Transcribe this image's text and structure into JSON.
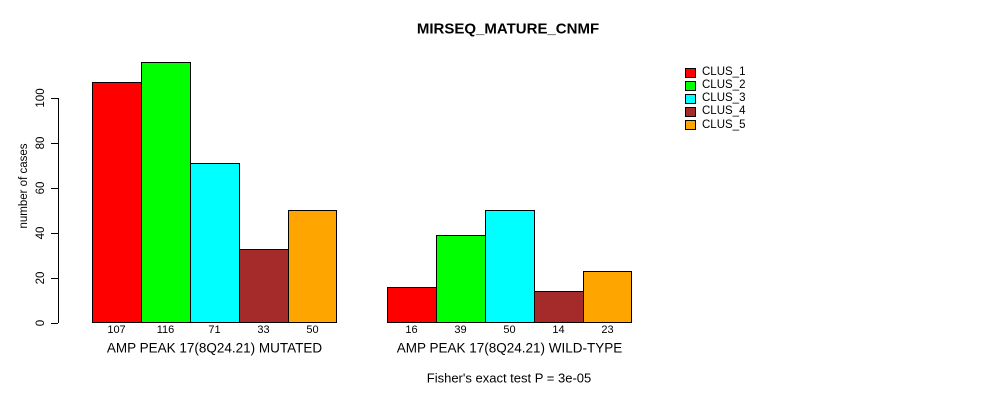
{
  "chart_data": {
    "type": "bar",
    "title": "MIRSEQ_MATURE_CNMF",
    "ylabel": "number of cases",
    "xlabel": "",
    "footnote": "Fisher's exact test P = 3e-05",
    "yticks": [
      0,
      20,
      40,
      60,
      80,
      100
    ],
    "ylim": [
      0,
      122
    ],
    "grid": false,
    "legend_position": "right",
    "series": [
      {
        "name": "CLUS_1",
        "color": "#ff0000"
      },
      {
        "name": "CLUS_2",
        "color": "#00ff00"
      },
      {
        "name": "CLUS_3",
        "color": "#00ffff"
      },
      {
        "name": "CLUS_4",
        "color": "#a52a2a"
      },
      {
        "name": "CLUS_5",
        "color": "#ffa500"
      }
    ],
    "groups": [
      {
        "label": "AMP PEAK 17(8Q24.21) MUTATED",
        "values": [
          107,
          116,
          71,
          33,
          50
        ]
      },
      {
        "label": "AMP PEAK 17(8Q24.21) WILD-TYPE",
        "values": [
          16,
          39,
          50,
          14,
          23
        ]
      }
    ]
  }
}
